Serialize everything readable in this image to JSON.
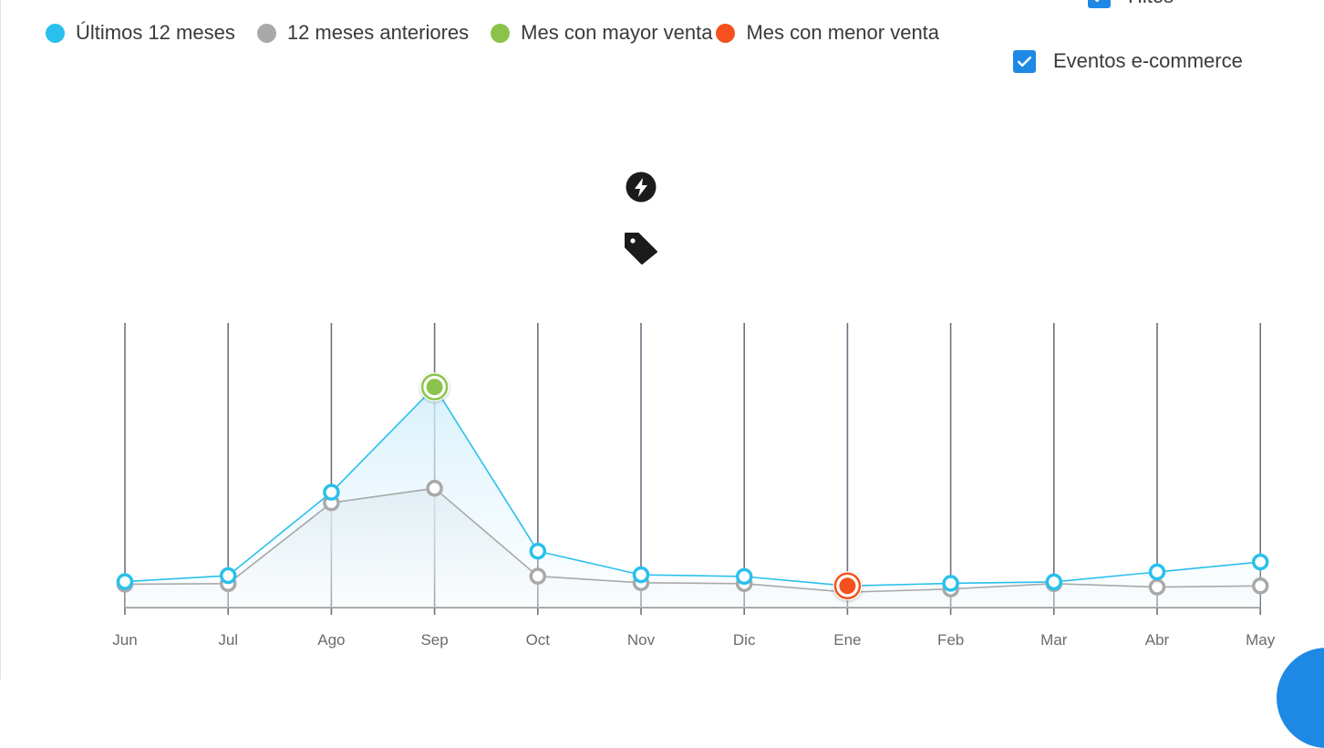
{
  "legend": {
    "last12": {
      "label": "Últimos 12 meses",
      "color": "#29c0ec"
    },
    "prev12": {
      "label": "12 meses anteriores",
      "color": "#a9a9a9"
    },
    "max": {
      "label": "Mes con mayor venta",
      "color": "#8bc34a"
    },
    "min": {
      "label": "Mes con menor venta",
      "color": "#f4511e"
    }
  },
  "toggles": {
    "hitos": {
      "label": "Hitos",
      "checked": true
    },
    "ecommerce": {
      "label": "Eventos e-commerce",
      "checked": true
    }
  },
  "markers": {
    "event_icon": "lightning-bolt-icon",
    "promo_icon": "tag-icon"
  },
  "chat_button": {
    "icon": "chat-icon",
    "color": "#1e88e5"
  },
  "chart_data": {
    "type": "line",
    "categories": [
      "Jun",
      "Jul",
      "Ago",
      "Sep",
      "Oct",
      "Nov",
      "Dic",
      "Ene",
      "Feb",
      "Mar",
      "Abr",
      "May"
    ],
    "series": [
      {
        "name": "Últimos 12 meses",
        "color": "#29c0ec",
        "values": [
          9.1,
          11.2,
          40.5,
          77.5,
          19.8,
          11.5,
          10.9,
          7.6,
          8.5,
          9.0,
          12.5,
          16.0
        ]
      },
      {
        "name": "12 meses anteriores",
        "color": "#a9a9a9",
        "values": [
          8.2,
          8.4,
          36.8,
          41.9,
          11.0,
          8.7,
          8.4,
          5.4,
          6.5,
          8.4,
          7.2,
          7.6
        ]
      }
    ],
    "highlights": {
      "max": {
        "category": "Sep",
        "series": "Últimos 12 meses",
        "color": "#8bc34a"
      },
      "min": {
        "category": "Ene",
        "series": "Últimos 12 meses",
        "color": "#f4511e"
      }
    },
    "marker_category": "Nov",
    "ylim": [
      0,
      100
    ],
    "grid": "vertical"
  }
}
